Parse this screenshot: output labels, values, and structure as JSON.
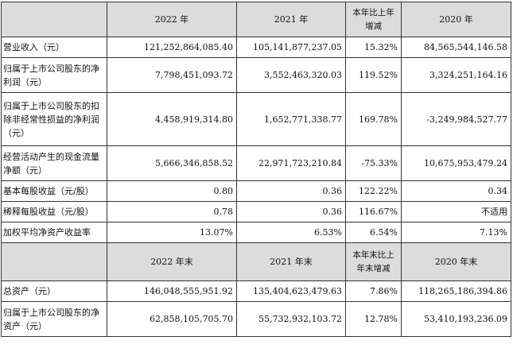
{
  "header1": [
    "2022 年",
    "2021 年",
    "本年比上年增减",
    "2020 年"
  ],
  "rows1": [
    {
      "label": "营业收入（元）",
      "v2022": "121,252,864,085.40",
      "v2021": "105,141,877,237.05",
      "change": "15.32%",
      "v2020": "84,565,544,146.58"
    },
    {
      "label": "归属于上市公司股东的净利润（元）",
      "v2022": "7,798,451,093.72",
      "v2021": "3,552,463,320.03",
      "change": "119.52%",
      "v2020": "3,324,251,164.16"
    },
    {
      "label": "归属于上市公司股东的扣除非经常性损益的净利润（元）",
      "v2022": "4,458,919,314.80",
      "v2021": "1,652,771,338.77",
      "change": "169.78%",
      "v2020": "-3,249,984,527.77"
    },
    {
      "label": "经营活动产生的现金流量净额（元）",
      "v2022": "5,666,346,858.52",
      "v2021": "22,971,723,210.84",
      "change": "-75.33%",
      "v2020": "10,675,953,479.24"
    },
    {
      "label": "基本每股收益（元/股）",
      "v2022": "0.80",
      "v2021": "0.36",
      "change": "122.22%",
      "v2020": "0.34"
    },
    {
      "label": "稀释每股收益（元/股）",
      "v2022": "0.78",
      "v2021": "0.36",
      "change": "116.67%",
      "v2020": "不适用"
    },
    {
      "label": "加权平均净资产收益率",
      "v2022": "13.07%",
      "v2021": "6.53%",
      "change": "6.54%",
      "v2020": "7.13%"
    }
  ],
  "header2": [
    "2022 年末",
    "2021 年末",
    "本年末比上年末增减",
    "2020 年末"
  ],
  "rows2": [
    {
      "label": "总资产（元）",
      "v2022": "146,048,555,951.92",
      "v2021": "135,404,623,479.63",
      "change": "7.86%",
      "v2020": "118,265,186,394.86"
    },
    {
      "label": "归属于上市公司股东的净资产（元）",
      "v2022": "62,858,105,705.70",
      "v2021": "55,732,932,103.72",
      "change": "12.78%",
      "v2020": "53,410,193,236.09"
    }
  ]
}
